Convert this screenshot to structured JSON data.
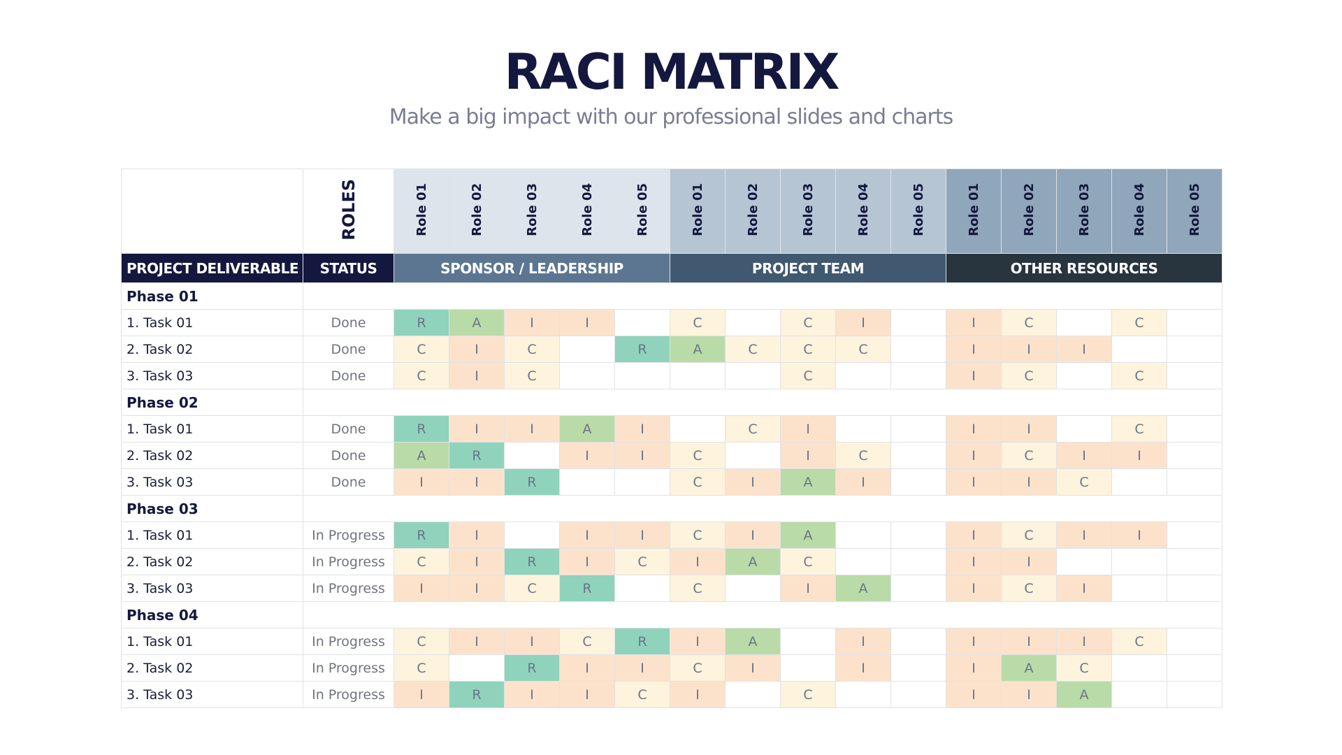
{
  "header": {
    "title": "RACI MATRIX",
    "subtitle": "Make a big impact with our professional slides and charts"
  },
  "table": {
    "roles_label": "ROLES",
    "deliverable_label": "PROJECT DELIVERABLE",
    "status_label": "STATUS",
    "groups": [
      {
        "name": "SPONSOR / LEADERSHIP",
        "roles": [
          "Role 01",
          "Role 02",
          "Role 03",
          "Role 04",
          "Role 05"
        ]
      },
      {
        "name": "PROJECT TEAM",
        "roles": [
          "Role 01",
          "Role 02",
          "Role 03",
          "Role 04",
          "Role 05"
        ]
      },
      {
        "name": "OTHER RESOURCES",
        "roles": [
          "Role 01",
          "Role 02",
          "Role 03",
          "Role 04",
          "Role 05"
        ]
      }
    ],
    "phases": [
      {
        "name": "Phase 01",
        "tasks": [
          {
            "name": "1. Task 01",
            "status": "Done",
            "cells": [
              "R",
              "A",
              "I",
              "I",
              null,
              "C",
              null,
              "C",
              "I",
              null,
              "I",
              "C",
              null,
              "C",
              null
            ]
          },
          {
            "name": "2. Task 02",
            "status": "Done",
            "cells": [
              "C",
              "I",
              "C",
              null,
              "R",
              "A",
              "C",
              "C",
              "C",
              null,
              "I",
              "I",
              "I",
              null,
              null
            ]
          },
          {
            "name": "3. Task 03",
            "status": "Done",
            "cells": [
              "C",
              "I",
              "C",
              null,
              null,
              null,
              null,
              "C",
              null,
              null,
              "I",
              "C",
              null,
              "C",
              null
            ]
          }
        ]
      },
      {
        "name": "Phase 02",
        "tasks": [
          {
            "name": "1. Task 01",
            "status": "Done",
            "cells": [
              "R",
              "I",
              "I",
              "A",
              "I",
              null,
              "C",
              "I",
              null,
              null,
              "I",
              "I",
              null,
              "C",
              null
            ]
          },
          {
            "name": "2. Task 02",
            "status": "Done",
            "cells": [
              "A",
              "R",
              null,
              "I",
              "I",
              "C",
              null,
              "I",
              "C",
              null,
              "I",
              "C",
              "I",
              "I",
              null
            ]
          },
          {
            "name": "3. Task 03",
            "status": "Done",
            "cells": [
              "I",
              "I",
              "R",
              null,
              null,
              "C",
              "I",
              "A",
              "I",
              null,
              "I",
              "I",
              "C",
              null,
              null
            ]
          }
        ]
      },
      {
        "name": "Phase 03",
        "tasks": [
          {
            "name": "1. Task 01",
            "status": "In Progress",
            "cells": [
              "R",
              "I",
              null,
              "I",
              "I",
              "C",
              "I",
              "A",
              null,
              null,
              "I",
              "C",
              "I",
              "I",
              null
            ]
          },
          {
            "name": "2. Task 02",
            "status": "In Progress",
            "cells": [
              "C",
              "I",
              "R",
              "I",
              "C",
              "I",
              "A",
              "C",
              null,
              null,
              "I",
              "I",
              null,
              null,
              null
            ]
          },
          {
            "name": "3. Task 03",
            "status": "In Progress",
            "cells": [
              "I",
              "I",
              "C",
              "R",
              null,
              "C",
              null,
              "I",
              "A",
              null,
              "I",
              "C",
              "I",
              null,
              null
            ]
          }
        ]
      },
      {
        "name": "Phase 04",
        "tasks": [
          {
            "name": "1. Task 01",
            "status": "In Progress",
            "cells": [
              "C",
              "I",
              "I",
              "C",
              "R",
              "I",
              "A",
              null,
              "I",
              null,
              "I",
              "I",
              "I",
              "C",
              null
            ]
          },
          {
            "name": "2. Task 02",
            "status": "In Progress",
            "cells": [
              "C",
              null,
              "R",
              "I",
              "I",
              "C",
              "I",
              null,
              "I",
              null,
              "I",
              "A",
              "C",
              null,
              null
            ]
          },
          {
            "name": "3. Task 03",
            "status": "In Progress",
            "cells": [
              "I",
              "R",
              "I",
              "I",
              "C",
              "I",
              null,
              "C",
              null,
              null,
              "I",
              "I",
              "A",
              null,
              null
            ]
          }
        ]
      }
    ]
  }
}
